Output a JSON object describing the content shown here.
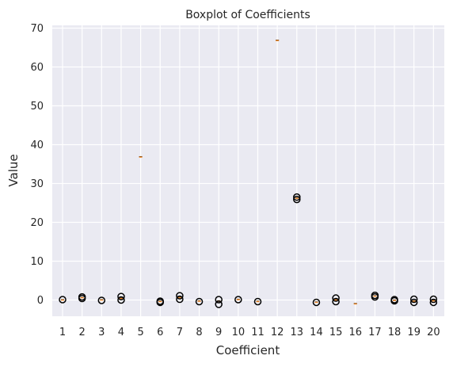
{
  "chart_data": {
    "type": "boxplot",
    "title": "Boxplot of Coefficients",
    "xlabel": "Coefficient",
    "ylabel": "Value",
    "ylim": [
      -4.5,
      71
    ],
    "yticks": [
      0,
      10,
      20,
      30,
      40,
      50,
      60,
      70
    ],
    "grid": true,
    "colors": {
      "background": "#eaeaf2",
      "grid": "#ffffff",
      "flier": "#000000",
      "median": "#f08a28"
    },
    "categories": [
      "1",
      "2",
      "3",
      "4",
      "5",
      "6",
      "7",
      "8",
      "9",
      "10",
      "11",
      "12",
      "13",
      "14",
      "15",
      "16",
      "17",
      "18",
      "19",
      "20"
    ],
    "boxes": [
      {
        "median": 0.0,
        "fliers": [
          0.1
        ]
      },
      {
        "median": 0.6,
        "fliers": [
          0.4,
          0.8
        ]
      },
      {
        "median": 0.0,
        "fliers": [
          -0.1
        ]
      },
      {
        "median": 0.4,
        "fliers": [
          0.0,
          0.9
        ]
      },
      {
        "median": 36.8,
        "fliers": []
      },
      {
        "median": -0.4,
        "fliers": [
          -0.6,
          -0.3
        ]
      },
      {
        "median": 0.6,
        "fliers": [
          0.2,
          1.1
        ]
      },
      {
        "median": -0.3,
        "fliers": [
          -0.4
        ]
      },
      {
        "median": -0.3,
        "fliers": [
          -1.1,
          0.1
        ]
      },
      {
        "median": 0.1,
        "fliers": [
          0.1
        ]
      },
      {
        "median": -0.4,
        "fliers": [
          -0.4
        ]
      },
      {
        "median": 66.8,
        "fliers": []
      },
      {
        "median": 26.2,
        "fliers": [
          25.9,
          26.5
        ]
      },
      {
        "median": -0.6,
        "fliers": [
          -0.6
        ]
      },
      {
        "median": 0.0,
        "fliers": [
          -0.4,
          0.5
        ]
      },
      {
        "median": -1.0,
        "fliers": []
      },
      {
        "median": 1.0,
        "fliers": [
          0.8,
          1.2
        ]
      },
      {
        "median": -0.1,
        "fliers": [
          -0.2,
          0.1
        ]
      },
      {
        "median": -0.3,
        "fliers": [
          -0.6,
          0.2
        ]
      },
      {
        "median": -0.2,
        "fliers": [
          -0.6,
          0.2
        ]
      }
    ]
  }
}
